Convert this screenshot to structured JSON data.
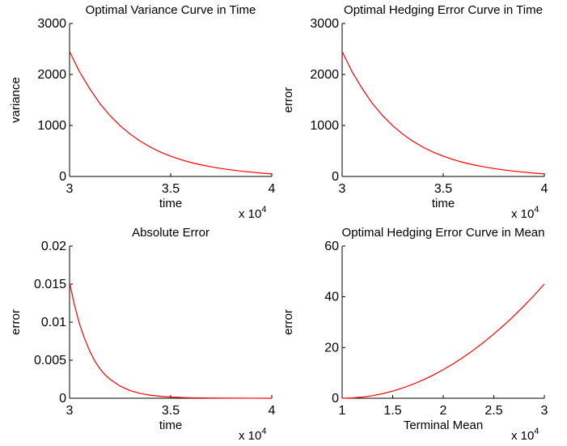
{
  "chart_data": [
    {
      "type": "line",
      "title": "Optimal Variance Curve in Time",
      "xlabel": "time",
      "ylabel": "variance",
      "x_multiplier_label": "x 10",
      "x_multiplier_exp": "4",
      "xlim": [
        30000,
        40000
      ],
      "ylim": [
        0,
        3000
      ],
      "xticks": [
        30000,
        35000,
        40000
      ],
      "xtick_labels": [
        "3",
        "3.5",
        "4"
      ],
      "yticks": [
        0,
        1000,
        2000,
        3000
      ],
      "ytick_labels": [
        "0",
        "1000",
        "2000",
        "3000"
      ],
      "line_color": "#ff0000",
      "series": [
        {
          "x": [
            30000,
            30500,
            31000,
            31500,
            32000,
            32500,
            33000,
            33500,
            34000,
            34500,
            35000,
            35500,
            36000,
            36500,
            37000,
            37500,
            38000,
            38500,
            39000,
            39500,
            40000
          ],
          "values": [
            2450,
            2050,
            1720,
            1430,
            1195,
            995,
            830,
            690,
            575,
            478,
            398,
            330,
            274,
            228,
            189,
            156,
            128,
            104,
            84,
            66,
            50
          ]
        }
      ]
    },
    {
      "type": "line",
      "title": "Optimal Hedging Error Curve in Time",
      "xlabel": "time",
      "ylabel": "error",
      "x_multiplier_label": "x 10",
      "x_multiplier_exp": "4",
      "xlim": [
        30000,
        40000
      ],
      "ylim": [
        0,
        3000
      ],
      "xticks": [
        30000,
        35000,
        40000
      ],
      "xtick_labels": [
        "3",
        "3.5",
        "4"
      ],
      "yticks": [
        0,
        1000,
        2000,
        3000
      ],
      "ytick_labels": [
        "0",
        "1000",
        "2000",
        "3000"
      ],
      "line_color": "#ff0000",
      "series": [
        {
          "x": [
            30000,
            30500,
            31000,
            31500,
            32000,
            32500,
            33000,
            33500,
            34000,
            34500,
            35000,
            35500,
            36000,
            36500,
            37000,
            37500,
            38000,
            38500,
            39000,
            39500,
            40000
          ],
          "values": [
            2450,
            2050,
            1720,
            1430,
            1195,
            995,
            830,
            690,
            575,
            478,
            398,
            330,
            274,
            228,
            189,
            156,
            128,
            104,
            84,
            66,
            50
          ]
        }
      ]
    },
    {
      "type": "line",
      "title": "Absolute Error",
      "xlabel": "time",
      "ylabel": "error",
      "x_multiplier_label": "x 10",
      "x_multiplier_exp": "4",
      "xlim": [
        30000,
        40000
      ],
      "ylim": [
        0,
        0.02
      ],
      "xticks": [
        30000,
        35000,
        40000
      ],
      "xtick_labels": [
        "3",
        "3.5",
        "4"
      ],
      "yticks": [
        0,
        0.005,
        0.01,
        0.015,
        0.02
      ],
      "ytick_labels": [
        "0",
        "0.005",
        "0.01",
        "0.015",
        "0.02"
      ],
      "line_color": "#ff0000",
      "series": [
        {
          "x": [
            30000,
            30250,
            30500,
            30750,
            31000,
            31250,
            31500,
            31750,
            32000,
            32500,
            33000,
            33500,
            34000,
            34500,
            35000,
            35500,
            36000,
            37000,
            38000,
            39000,
            40000
          ],
          "values": [
            0.0152,
            0.0122,
            0.0097,
            0.0078,
            0.0062,
            0.0049,
            0.0039,
            0.0031,
            0.0025,
            0.0016,
            0.001,
            0.00063,
            0.0004,
            0.00025,
            0.00016,
            0.0001,
            6e-05,
            3e-05,
            1e-05,
            5e-06,
            0.0
          ]
        }
      ]
    },
    {
      "type": "line",
      "title": "Optimal Hedging Error Curve in Mean",
      "xlabel": "Terminal Mean",
      "ylabel": "error",
      "x_multiplier_label": "x 10",
      "x_multiplier_exp": "4",
      "xlim": [
        10000,
        30000
      ],
      "ylim": [
        0,
        60
      ],
      "xticks": [
        10000,
        15000,
        20000,
        25000,
        30000
      ],
      "xtick_labels": [
        "1",
        "1.5",
        "2",
        "2.5",
        "3"
      ],
      "yticks": [
        0,
        20,
        40,
        60
      ],
      "ytick_labels": [
        "0",
        "20",
        "40",
        "60"
      ],
      "line_color": "#ff0000",
      "series": [
        {
          "x": [
            10000,
            11000,
            12000,
            13000,
            14000,
            15000,
            16000,
            17000,
            18000,
            19000,
            20000,
            21000,
            22000,
            23000,
            24000,
            25000,
            26000,
            27000,
            28000,
            29000,
            30000
          ],
          "values": [
            0,
            0.11,
            0.45,
            1.01,
            1.8,
            2.81,
            4.05,
            5.51,
            7.2,
            9.11,
            11.25,
            13.61,
            16.2,
            19.01,
            22.05,
            25.31,
            28.8,
            32.51,
            36.45,
            40.61,
            45
          ]
        }
      ]
    }
  ]
}
